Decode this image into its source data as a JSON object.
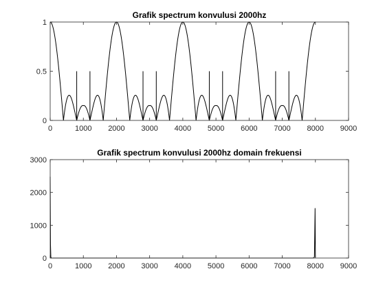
{
  "chart_data": [
    {
      "type": "line",
      "title": "Grafik spectrum konvulusi 2000hz",
      "xlabel": "",
      "ylabel": "",
      "xlim": [
        0,
        9000
      ],
      "ylim": [
        0,
        1
      ],
      "xticks": [
        0,
        1000,
        2000,
        3000,
        4000,
        5000,
        6000,
        7000,
        8000,
        9000
      ],
      "yticks": [
        0,
        0.5,
        1
      ],
      "grid": false,
      "legend": "none",
      "line_color": "#000000",
      "series": [
        {
          "description_kind": "sinc-magnitude lobes",
          "main_lobe_peaks_x": [
            0,
            2000,
            4000,
            6000,
            8000
          ],
          "main_lobe_peak_y": 1,
          "zero_crossings_x": [
            400,
            800,
            1200,
            1600,
            2400,
            2800,
            3200,
            3600,
            4400,
            4800,
            5200,
            5600,
            6400,
            6800,
            7200,
            7600
          ],
          "side_lobe_centers_x": [
            600,
            1400,
            2600,
            3400,
            4600,
            5400,
            6600,
            7400
          ],
          "side_lobe_peak_y": 0.25,
          "x_end": 8000
        },
        {
          "description_kind": "impulses",
          "x": [
            800,
            1200,
            2800,
            3200,
            4800,
            5200,
            6800,
            7200
          ],
          "y": [
            0.5,
            0.5,
            0.5,
            0.5,
            0.5,
            0.5,
            0.5,
            0.5
          ]
        }
      ]
    },
    {
      "type": "line",
      "title": "Grafik spectrum konvulusi 2000hz domain frekuensi",
      "xlabel": "",
      "ylabel": "",
      "xlim": [
        0,
        9000
      ],
      "ylim": [
        0,
        3000
      ],
      "xticks": [
        0,
        1000,
        2000,
        3000,
        4000,
        5000,
        6000,
        7000,
        8000,
        9000
      ],
      "yticks": [
        0,
        1000,
        2000,
        3000
      ],
      "grid": false,
      "legend": "none",
      "line_color": "#000000",
      "series": [
        {
          "x": [
            0,
            10,
            20,
            30,
            40,
            60,
            7900,
            7950,
            7970,
            7980,
            7990,
            8000
          ],
          "y": [
            2480,
            400,
            30,
            8,
            3,
            0,
            0,
            5,
            40,
            700,
            1520,
            20
          ]
        }
      ]
    }
  ]
}
